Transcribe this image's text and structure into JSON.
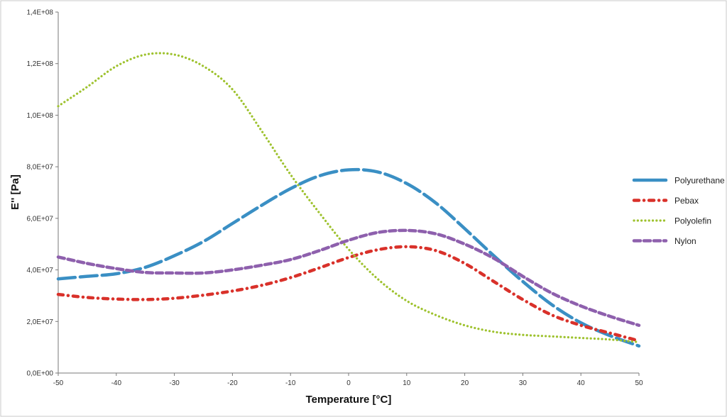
{
  "chart_data": {
    "type": "line",
    "title": "",
    "xlabel": "Temperature [°C]",
    "ylabel": "E'' [Pa]",
    "xlim": [
      -50,
      50
    ],
    "ylim": [
      0,
      140000000
    ],
    "x_ticks": [
      -50,
      -40,
      -30,
      -20,
      -10,
      0,
      10,
      20,
      30,
      40,
      50
    ],
    "x_tick_labels": [
      "-50",
      "-40",
      "-30",
      "-20",
      "-10",
      "0",
      "10",
      "20",
      "30",
      "40",
      "50"
    ],
    "y_ticks": [
      0,
      20000000,
      40000000,
      60000000,
      80000000,
      100000000,
      120000000,
      140000000
    ],
    "y_tick_labels": [
      "0,0E+00",
      "2,0E+07",
      "4,0E+07",
      "6,0E+07",
      "8,0E+07",
      "1,0E+08",
      "1,2E+08",
      "1,4E+08"
    ],
    "grid": false,
    "legend_position": "right",
    "series": [
      {
        "name": "Polyurethane",
        "color": "#3a8fc4",
        "dash": "long-dash",
        "x": [
          -50,
          -45,
          -40,
          -35,
          -30,
          -25,
          -20,
          -15,
          -10,
          -5,
          0,
          5,
          10,
          15,
          20,
          25,
          30,
          35,
          40,
          45,
          50
        ],
        "y": [
          36500000,
          37500000,
          38500000,
          41000000,
          45500000,
          51000000,
          58000000,
          65000000,
          71500000,
          76500000,
          78800000,
          78000000,
          73500000,
          66000000,
          56000000,
          45500000,
          35500000,
          26500000,
          19500000,
          14500000,
          10500000
        ]
      },
      {
        "name": "Pebax",
        "color": "#d9312a",
        "dash": "dash-dot",
        "x": [
          -50,
          -45,
          -40,
          -35,
          -30,
          -25,
          -20,
          -15,
          -10,
          -5,
          0,
          5,
          10,
          15,
          20,
          25,
          30,
          35,
          40,
          45,
          50
        ],
        "y": [
          30500000,
          29300000,
          28700000,
          28500000,
          29000000,
          30200000,
          31800000,
          34000000,
          37000000,
          40800000,
          44800000,
          47800000,
          49000000,
          47500000,
          42500000,
          35500000,
          28500000,
          22500000,
          18500000,
          15500000,
          12500000
        ]
      },
      {
        "name": "Polyolefin",
        "color": "#9ec22e",
        "dash": "dotted",
        "x": [
          -50,
          -45,
          -40,
          -35,
          -30,
          -25,
          -20,
          -15,
          -10,
          -5,
          0,
          5,
          10,
          15,
          20,
          25,
          30,
          35,
          40,
          45,
          50
        ],
        "y": [
          103500000,
          111000000,
          119000000,
          123500000,
          123500000,
          119000000,
          110000000,
          94000000,
          77000000,
          62000000,
          48000000,
          36500000,
          28000000,
          22500000,
          18500000,
          16000000,
          14800000,
          14200000,
          13600000,
          13000000,
          12000000
        ]
      },
      {
        "name": "Nylon",
        "color": "#8e60ad",
        "dash": "dashed",
        "x": [
          -50,
          -45,
          -40,
          -35,
          -30,
          -25,
          -20,
          -15,
          -10,
          -5,
          0,
          5,
          10,
          15,
          20,
          25,
          30,
          35,
          40,
          45,
          50
        ],
        "y": [
          45000000,
          42500000,
          40500000,
          39000000,
          38800000,
          38800000,
          40000000,
          41800000,
          44000000,
          47500000,
          51500000,
          54500000,
          55300000,
          54000000,
          50000000,
          44500000,
          37500000,
          31000000,
          26000000,
          22000000,
          18500000
        ]
      }
    ]
  }
}
